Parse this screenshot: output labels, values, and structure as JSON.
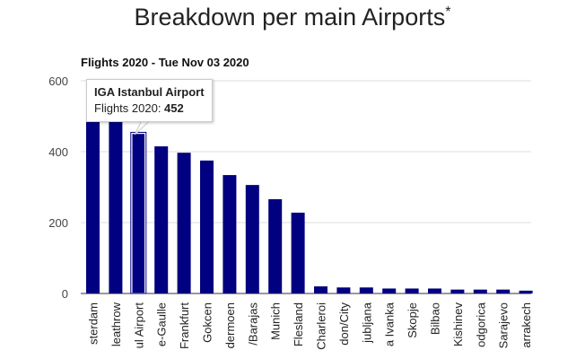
{
  "chart_data": {
    "type": "bar",
    "title": "Breakdown per main Airports",
    "title_mark": "*",
    "subtitle": "Flights 2020 - Tue Nov 03 2020",
    "categories": [
      "sterdam",
      "leathrow",
      "ul Airport",
      "e-Gaulle",
      "Frankfurt",
      "Gokcen",
      "dermoen",
      "/Barajas",
      "Munich",
      "Flesland",
      "Charleroi",
      "don/City",
      "jubljana",
      "a Ivanka",
      "Skopje",
      "Bilbao",
      "Kishinev",
      "odgorica",
      "Sarajevo",
      "arrakech"
    ],
    "values": [
      509,
      484,
      452,
      415,
      397,
      375,
      334,
      306,
      266,
      228,
      20,
      17,
      17,
      14,
      14,
      14,
      11,
      11,
      11,
      8
    ],
    "ylim": [
      0,
      600
    ],
    "yticks": [
      0,
      200,
      400,
      600
    ],
    "grid": true,
    "bar_color": "#000080",
    "highlighted_index": 2,
    "tooltip": {
      "name": "IGA Istanbul Airport",
      "label": "Flights 2020: ",
      "value": "452"
    }
  }
}
